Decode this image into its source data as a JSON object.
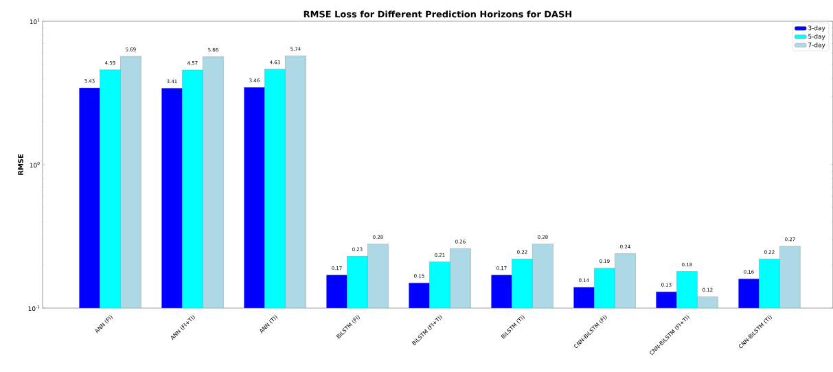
{
  "chart_data": {
    "type": "bar",
    "title": "RMSE Loss for Different Prediction Horizons for DASH",
    "ylabel": "RMSE",
    "categories": [
      "ANN (FI)",
      "ANN (FI+TI)",
      "ANN (TI)",
      "BiLSTM (FI)",
      "BiLSTM (FI+TI)",
      "BiLSTM (TI)",
      "CNN-BiLSTM (FI)",
      "CNN-BiLSTM (FI+TI)",
      "CNN-BiLSTM (TI)"
    ],
    "series": [
      {
        "name": "3-day",
        "color": "#0000ff",
        "values": [
          3.43,
          3.41,
          3.46,
          0.17,
          0.15,
          0.17,
          0.14,
          0.13,
          0.16
        ]
      },
      {
        "name": "5-day",
        "color": "#00ffff",
        "values": [
          4.59,
          4.57,
          4.63,
          0.23,
          0.21,
          0.22,
          0.19,
          0.18,
          0.22
        ]
      },
      {
        "name": "7-day",
        "color": "#add8e6",
        "values": [
          5.69,
          5.66,
          5.74,
          0.28,
          0.26,
          0.28,
          0.24,
          0.12,
          0.27
        ]
      }
    ],
    "log": true,
    "ylim": [
      0.1,
      10
    ],
    "yticks": [
      {
        "value": 0.1,
        "label": "10$^{-1}$"
      },
      {
        "value": 1,
        "label": "10$^{0}$"
      },
      {
        "value": 10,
        "label": "10$^{1}$"
      }
    ],
    "data_labels": true,
    "legend": "top right",
    "grid": false
  }
}
